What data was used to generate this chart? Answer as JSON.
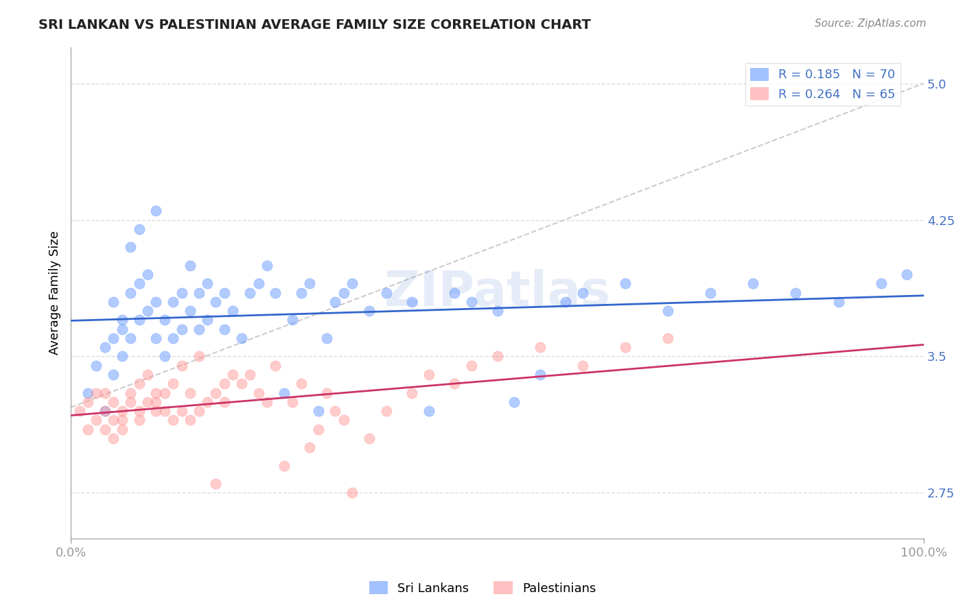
{
  "title": "SRI LANKAN VS PALESTINIAN AVERAGE FAMILY SIZE CORRELATION CHART",
  "source": "Source: ZipAtlas.com",
  "ylabel": "Average Family Size",
  "xlabel": "",
  "yticks": [
    2.75,
    3.5,
    4.25,
    5.0
  ],
  "ymin": 2.5,
  "ymax": 5.2,
  "xmin": 0.0,
  "xmax": 1.0,
  "xtick_labels": [
    "0.0%",
    "100.0%"
  ],
  "xtick_positions": [
    0.0,
    1.0
  ],
  "title_fontsize": 15,
  "axis_color": "#4472C4",
  "watermark": "ZIPatlas",
  "sri_lankans_color": "#6699FF",
  "palestinians_color": "#FF9999",
  "sri_lankans_label": "Sri Lankans",
  "palestinians_label": "Palestinians",
  "R_sri": 0.185,
  "N_sri": 70,
  "R_pal": 0.264,
  "N_pal": 65,
  "sri_lankans_x": [
    0.02,
    0.03,
    0.04,
    0.04,
    0.05,
    0.05,
    0.05,
    0.06,
    0.06,
    0.06,
    0.07,
    0.07,
    0.07,
    0.08,
    0.08,
    0.08,
    0.09,
    0.09,
    0.1,
    0.1,
    0.1,
    0.11,
    0.11,
    0.12,
    0.12,
    0.13,
    0.13,
    0.14,
    0.14,
    0.15,
    0.15,
    0.16,
    0.16,
    0.17,
    0.18,
    0.18,
    0.19,
    0.2,
    0.21,
    0.22,
    0.23,
    0.24,
    0.25,
    0.26,
    0.27,
    0.28,
    0.29,
    0.3,
    0.31,
    0.32,
    0.33,
    0.35,
    0.37,
    0.4,
    0.42,
    0.45,
    0.47,
    0.5,
    0.52,
    0.55,
    0.58,
    0.6,
    0.65,
    0.7,
    0.75,
    0.8,
    0.85,
    0.9,
    0.95,
    0.98
  ],
  "sri_lankans_y": [
    3.3,
    3.45,
    3.2,
    3.55,
    3.8,
    3.6,
    3.4,
    3.7,
    3.5,
    3.65,
    4.1,
    3.85,
    3.6,
    4.2,
    3.9,
    3.7,
    3.95,
    3.75,
    4.3,
    3.8,
    3.6,
    3.7,
    3.5,
    3.8,
    3.6,
    3.85,
    3.65,
    4.0,
    3.75,
    3.85,
    3.65,
    3.9,
    3.7,
    3.8,
    3.85,
    3.65,
    3.75,
    3.6,
    3.85,
    3.9,
    4.0,
    3.85,
    3.3,
    3.7,
    3.85,
    3.9,
    3.2,
    3.6,
    3.8,
    3.85,
    3.9,
    3.75,
    3.85,
    3.8,
    3.2,
    3.85,
    3.8,
    3.75,
    3.25,
    3.4,
    3.8,
    3.85,
    3.9,
    3.75,
    3.85,
    3.9,
    3.85,
    3.8,
    3.9,
    3.95
  ],
  "palestinians_x": [
    0.01,
    0.02,
    0.02,
    0.03,
    0.03,
    0.04,
    0.04,
    0.04,
    0.05,
    0.05,
    0.05,
    0.06,
    0.06,
    0.06,
    0.07,
    0.07,
    0.08,
    0.08,
    0.08,
    0.09,
    0.09,
    0.1,
    0.1,
    0.1,
    0.11,
    0.11,
    0.12,
    0.12,
    0.13,
    0.13,
    0.14,
    0.14,
    0.15,
    0.15,
    0.16,
    0.17,
    0.17,
    0.18,
    0.18,
    0.19,
    0.2,
    0.21,
    0.22,
    0.23,
    0.24,
    0.25,
    0.26,
    0.27,
    0.28,
    0.29,
    0.3,
    0.31,
    0.32,
    0.33,
    0.35,
    0.37,
    0.4,
    0.42,
    0.45,
    0.47,
    0.5,
    0.55,
    0.6,
    0.65,
    0.7
  ],
  "palestinians_y": [
    3.2,
    3.1,
    3.25,
    3.3,
    3.15,
    3.2,
    3.3,
    3.1,
    3.25,
    3.15,
    3.05,
    3.2,
    3.15,
    3.1,
    3.25,
    3.3,
    3.2,
    3.35,
    3.15,
    3.4,
    3.25,
    3.3,
    3.2,
    3.25,
    3.3,
    3.2,
    3.35,
    3.15,
    3.45,
    3.2,
    3.3,
    3.15,
    3.5,
    3.2,
    3.25,
    3.3,
    2.8,
    3.25,
    3.35,
    3.4,
    3.35,
    3.4,
    3.3,
    3.25,
    3.45,
    2.9,
    3.25,
    3.35,
    3.0,
    3.1,
    3.3,
    3.2,
    3.15,
    2.75,
    3.05,
    3.2,
    3.3,
    3.4,
    3.35,
    3.45,
    3.5,
    3.55,
    3.45,
    3.55,
    3.6
  ],
  "ref_line_color": "#CCCCCC",
  "sri_line_color": "#3366CC",
  "pal_line_color": "#CC3366",
  "grid_color": "#CCCCCC",
  "background_color": "#FFFFFF"
}
